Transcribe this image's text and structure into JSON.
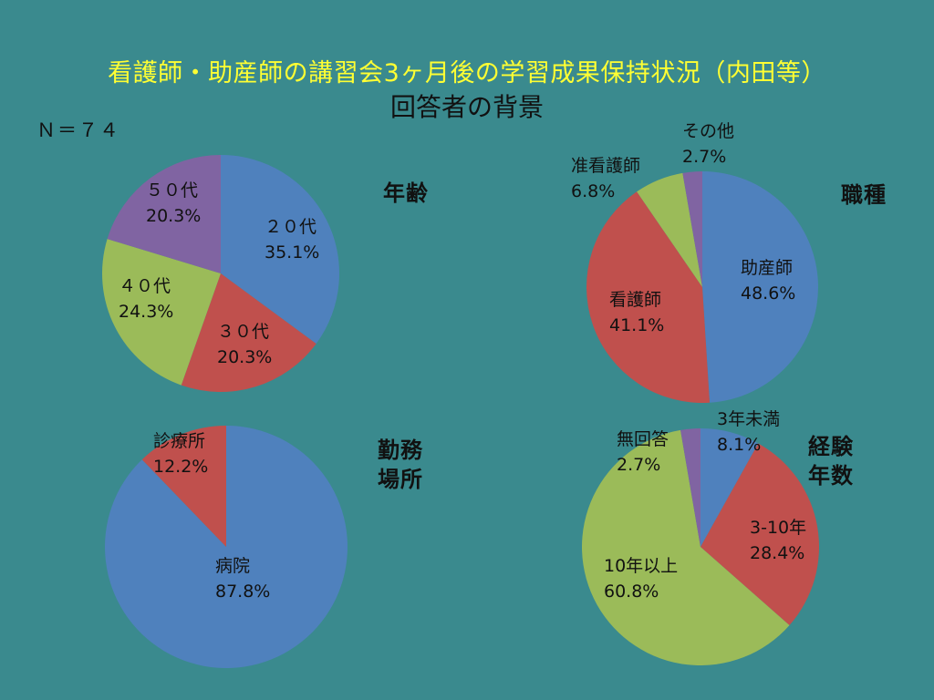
{
  "title": "看護師・助産師の講習会3ヶ月後の学習成果保持状況（内田等）",
  "subtitle": "回答者の背景",
  "n_label": "Ｎ＝７４",
  "chart_data": [
    {
      "type": "pie",
      "title": "年齢",
      "categories": [
        "２０代",
        "３０代",
        "４０代",
        "５０代"
      ],
      "values": [
        35.1,
        20.3,
        24.3,
        20.3
      ],
      "labels": [
        "35.1%",
        "20.3%",
        "24.3%",
        "20.3%"
      ],
      "colors": [
        "#4f81bd",
        "#c0504d",
        "#9bbb59",
        "#8064a2"
      ]
    },
    {
      "type": "pie",
      "title": "職種",
      "categories": [
        "助産師",
        "看護師",
        "准看護師",
        "その他"
      ],
      "values": [
        48.6,
        41.1,
        6.8,
        2.7
      ],
      "labels": [
        "48.6%",
        "41.1%",
        "6.8%",
        "2.7%"
      ],
      "colors": [
        "#4f81bd",
        "#c0504d",
        "#9bbb59",
        "#8064a2"
      ]
    },
    {
      "type": "pie",
      "title": "勤務場所",
      "title_lines": [
        "勤務",
        "場所"
      ],
      "categories": [
        "病院",
        "診療所"
      ],
      "values": [
        87.8,
        12.2
      ],
      "labels": [
        "87.8%",
        "12.2%"
      ],
      "colors": [
        "#4f81bd",
        "#c0504d"
      ]
    },
    {
      "type": "pie",
      "title": "経験年数",
      "title_lines": [
        "経験",
        "年数"
      ],
      "categories": [
        "3年未満",
        "3-10年",
        "10年以上",
        "無回答"
      ],
      "values": [
        8.1,
        28.4,
        60.8,
        2.7
      ],
      "labels": [
        "8.1%",
        "28.4%",
        "60.8%",
        "2.7%"
      ],
      "colors": [
        "#4f81bd",
        "#c0504d",
        "#9bbb59",
        "#8064a2"
      ]
    }
  ]
}
